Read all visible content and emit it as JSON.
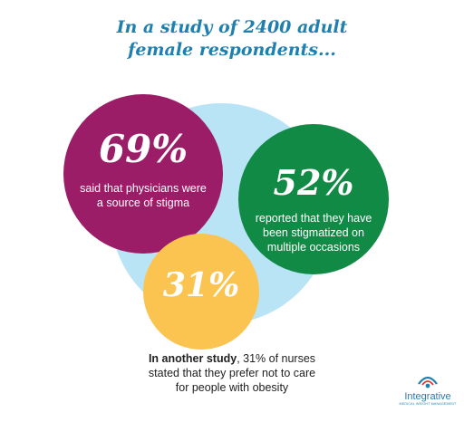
{
  "title": {
    "line1": "In a study of 2400 adult",
    "line2": "female respondents..."
  },
  "stats": [
    {
      "percent": "69%",
      "line1": "said that physicians were",
      "line2": "a source of stigma"
    },
    {
      "percent": "52%",
      "line1": "reported that they have",
      "line2": "been stigmatized on",
      "line3": "multiple occasions"
    },
    {
      "percent": "31%"
    }
  ],
  "footnote": {
    "bold": "In another study",
    "line1_rest": ", 31% of nurses",
    "line2": "stated that they prefer not to care",
    "line3": "for people with obesity"
  },
  "logo": {
    "name": "Integrative",
    "tagline": "MEDICAL WEIGHT MANAGEMENT"
  },
  "colors": {
    "title": "#1f7fae",
    "background_circle": "#b9e4f6",
    "stat1": "#9b1d67",
    "stat2": "#118a45",
    "stat3": "#fbc451",
    "logo": "#1f7fae",
    "logo_accent": "#d93a33"
  }
}
